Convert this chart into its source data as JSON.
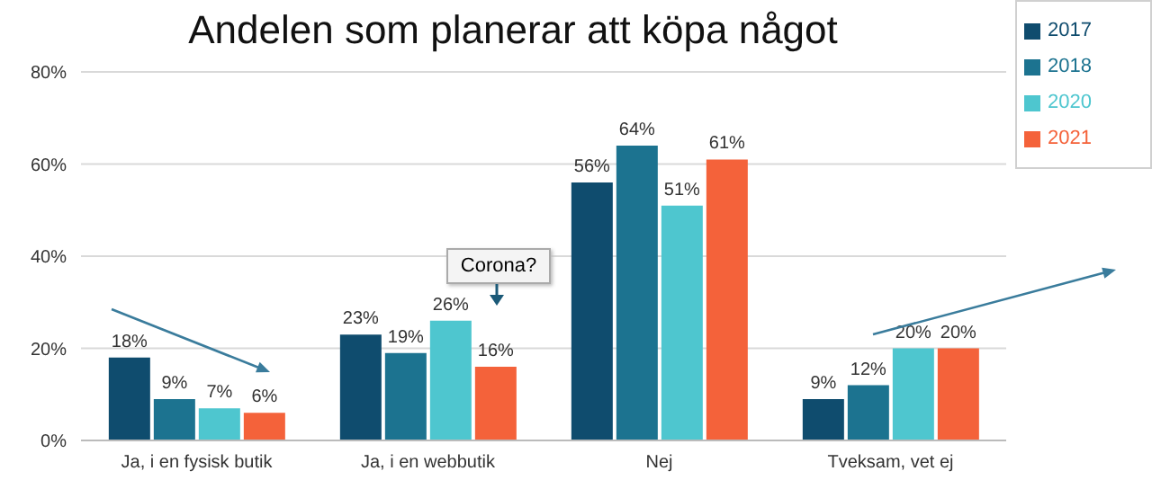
{
  "chart_data": {
    "type": "bar",
    "title": "Andelen som planerar att köpa något",
    "categories": [
      "Ja, i en fysisk butik",
      "Ja, i en webbutik",
      "Nej",
      "Tveksam, vet ej"
    ],
    "series": [
      {
        "name": "2017",
        "color": "#0f4c6e",
        "values": [
          18,
          23,
          56,
          9
        ],
        "value_labels": [
          "18%",
          "23%",
          "56%",
          "9%"
        ]
      },
      {
        "name": "2018",
        "color": "#1c7390",
        "values": [
          9,
          19,
          64,
          12
        ],
        "value_labels": [
          "9%",
          "19%",
          "64%",
          "12%"
        ]
      },
      {
        "name": "2020",
        "color": "#4ec6cf",
        "values": [
          7,
          26,
          51,
          20
        ],
        "value_labels": [
          "7%",
          "26%",
          "51%",
          "20%"
        ]
      },
      {
        "name": "2021",
        "color": "#f4623a",
        "values": [
          6,
          16,
          61,
          20
        ],
        "value_labels": [
          "6%",
          "16%",
          "61%",
          "20%"
        ]
      }
    ],
    "ylim": [
      0,
      80
    ],
    "yticks": [
      {
        "value": 0,
        "label": "0%"
      },
      {
        "value": 20,
        "label": "20%"
      },
      {
        "value": 40,
        "label": "40%"
      },
      {
        "value": 60,
        "label": "60%"
      },
      {
        "value": 80,
        "label": "80%"
      }
    ],
    "grid": "y",
    "legend": "top right",
    "annotations": [
      "Corona?"
    ]
  }
}
